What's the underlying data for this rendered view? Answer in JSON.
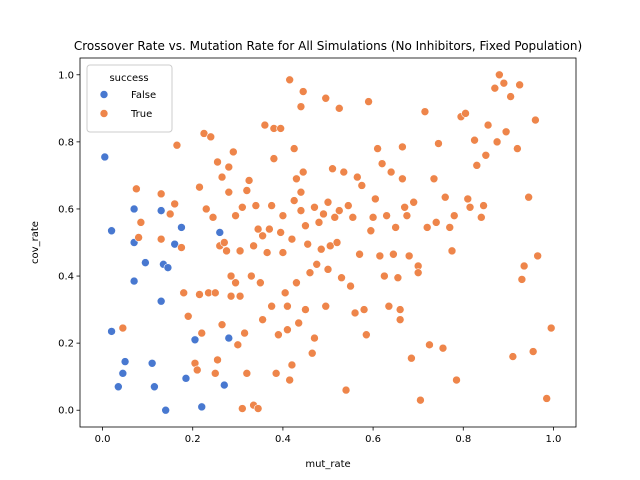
{
  "chart_data": {
    "type": "scatter",
    "title": "Crossover Rate vs. Mutation Rate for All Simulations (No Inhibitors, Fixed Population)",
    "xlabel": "mut_rate",
    "ylabel": "cov_rate",
    "xlim": [
      -0.05,
      1.05
    ],
    "ylim": [
      -0.05,
      1.05
    ],
    "xticks": [
      "0.0",
      "0.2",
      "0.4",
      "0.6",
      "0.8",
      "1.0"
    ],
    "yticks": [
      "0.0",
      "0.2",
      "0.4",
      "0.6",
      "0.8",
      "1.0"
    ],
    "grid": false,
    "legend": {
      "title": "success",
      "position": "top-left"
    },
    "series": [
      {
        "name": "False",
        "color": "#4878d0",
        "points": [
          [
            0.005,
            0.755
          ],
          [
            0.02,
            0.535
          ],
          [
            0.02,
            0.235
          ],
          [
            0.035,
            0.07
          ],
          [
            0.045,
            0.11
          ],
          [
            0.05,
            0.145
          ],
          [
            0.07,
            0.6
          ],
          [
            0.07,
            0.5
          ],
          [
            0.07,
            0.385
          ],
          [
            0.095,
            0.44
          ],
          [
            0.11,
            0.14
          ],
          [
            0.115,
            0.07
          ],
          [
            0.13,
            0.595
          ],
          [
            0.13,
            0.325
          ],
          [
            0.135,
            0.435
          ],
          [
            0.14,
            0.0
          ],
          [
            0.145,
            0.425
          ],
          [
            0.16,
            0.495
          ],
          [
            0.175,
            0.545
          ],
          [
            0.185,
            0.095
          ],
          [
            0.205,
            0.21
          ],
          [
            0.22,
            0.01
          ],
          [
            0.26,
            0.53
          ],
          [
            0.27,
            0.075
          ],
          [
            0.28,
            0.215
          ]
        ]
      },
      {
        "name": "True",
        "color": "#ee854a",
        "points": [
          [
            0.045,
            0.245
          ],
          [
            0.075,
            0.66
          ],
          [
            0.08,
            0.515
          ],
          [
            0.085,
            0.56
          ],
          [
            0.13,
            0.645
          ],
          [
            0.13,
            0.51
          ],
          [
            0.15,
            0.585
          ],
          [
            0.16,
            0.615
          ],
          [
            0.165,
            0.79
          ],
          [
            0.175,
            0.485
          ],
          [
            0.18,
            0.35
          ],
          [
            0.19,
            0.28
          ],
          [
            0.205,
            0.14
          ],
          [
            0.21,
            0.12
          ],
          [
            0.215,
            0.665
          ],
          [
            0.215,
            0.345
          ],
          [
            0.22,
            0.23
          ],
          [
            0.225,
            0.825
          ],
          [
            0.23,
            0.6
          ],
          [
            0.235,
            0.35
          ],
          [
            0.24,
            0.815
          ],
          [
            0.245,
            0.575
          ],
          [
            0.25,
            0.35
          ],
          [
            0.25,
            0.11
          ],
          [
            0.255,
            0.74
          ],
          [
            0.255,
            0.15
          ],
          [
            0.26,
            0.49
          ],
          [
            0.265,
            0.695
          ],
          [
            0.265,
            0.255
          ],
          [
            0.27,
            0.5
          ],
          [
            0.275,
            0.475
          ],
          [
            0.28,
            0.725
          ],
          [
            0.28,
            0.65
          ],
          [
            0.285,
            0.4
          ],
          [
            0.285,
            0.34
          ],
          [
            0.29,
            0.77
          ],
          [
            0.295,
            0.58
          ],
          [
            0.295,
            0.38
          ],
          [
            0.3,
            0.195
          ],
          [
            0.305,
            0.475
          ],
          [
            0.305,
            0.34
          ],
          [
            0.31,
            0.605
          ],
          [
            0.31,
            0.005
          ],
          [
            0.315,
            0.23
          ],
          [
            0.32,
            0.11
          ],
          [
            0.32,
            0.655
          ],
          [
            0.325,
            0.685
          ],
          [
            0.33,
            0.4
          ],
          [
            0.335,
            0.49
          ],
          [
            0.335,
            0.015
          ],
          [
            0.34,
            0.61
          ],
          [
            0.345,
            0.54
          ],
          [
            0.345,
            0.005
          ],
          [
            0.35,
            0.38
          ],
          [
            0.355,
            0.52
          ],
          [
            0.355,
            0.27
          ],
          [
            0.36,
            0.85
          ],
          [
            0.365,
            0.47
          ],
          [
            0.37,
            0.54
          ],
          [
            0.375,
            0.61
          ],
          [
            0.375,
            0.31
          ],
          [
            0.38,
            0.84
          ],
          [
            0.38,
            0.75
          ],
          [
            0.385,
            0.11
          ],
          [
            0.39,
            0.225
          ],
          [
            0.395,
            0.84
          ],
          [
            0.395,
            0.53
          ],
          [
            0.4,
            0.58
          ],
          [
            0.4,
            0.47
          ],
          [
            0.405,
            0.35
          ],
          [
            0.41,
            0.31
          ],
          [
            0.41,
            0.24
          ],
          [
            0.415,
            0.09
          ],
          [
            0.415,
            0.985
          ],
          [
            0.42,
            0.51
          ],
          [
            0.42,
            0.135
          ],
          [
            0.425,
            0.78
          ],
          [
            0.425,
            0.625
          ],
          [
            0.43,
            0.69
          ],
          [
            0.43,
            0.38
          ],
          [
            0.435,
            0.26
          ],
          [
            0.44,
            0.905
          ],
          [
            0.44,
            0.65
          ],
          [
            0.44,
            0.595
          ],
          [
            0.445,
            0.95
          ],
          [
            0.445,
            0.71
          ],
          [
            0.45,
            0.55
          ],
          [
            0.45,
            0.3
          ],
          [
            0.455,
            0.495
          ],
          [
            0.46,
            0.41
          ],
          [
            0.465,
            0.17
          ],
          [
            0.47,
            0.605
          ],
          [
            0.47,
            0.215
          ],
          [
            0.475,
            0.435
          ],
          [
            0.48,
            0.56
          ],
          [
            0.485,
            0.48
          ],
          [
            0.49,
            0.585
          ],
          [
            0.495,
            0.93
          ],
          [
            0.495,
            0.31
          ],
          [
            0.5,
            0.62
          ],
          [
            0.5,
            0.42
          ],
          [
            0.505,
            0.49
          ],
          [
            0.51,
            0.72
          ],
          [
            0.515,
            0.575
          ],
          [
            0.52,
            0.5
          ],
          [
            0.525,
            0.595
          ],
          [
            0.525,
            0.9
          ],
          [
            0.53,
            0.395
          ],
          [
            0.535,
            0.71
          ],
          [
            0.54,
            0.06
          ],
          [
            0.545,
            0.61
          ],
          [
            0.55,
            0.37
          ],
          [
            0.555,
            0.575
          ],
          [
            0.56,
            0.29
          ],
          [
            0.565,
            0.695
          ],
          [
            0.57,
            0.465
          ],
          [
            0.575,
            0.67
          ],
          [
            0.58,
            0.3
          ],
          [
            0.585,
            0.225
          ],
          [
            0.59,
            0.92
          ],
          [
            0.595,
            0.535
          ],
          [
            0.6,
            0.575
          ],
          [
            0.605,
            0.63
          ],
          [
            0.61,
            0.78
          ],
          [
            0.615,
            0.46
          ],
          [
            0.62,
            0.735
          ],
          [
            0.625,
            0.4
          ],
          [
            0.63,
            0.58
          ],
          [
            0.635,
            0.31
          ],
          [
            0.64,
            0.71
          ],
          [
            0.645,
            0.465
          ],
          [
            0.65,
            0.545
          ],
          [
            0.655,
            0.395
          ],
          [
            0.66,
            0.3
          ],
          [
            0.66,
            0.27
          ],
          [
            0.665,
            0.785
          ],
          [
            0.665,
            0.69
          ],
          [
            0.67,
            0.605
          ],
          [
            0.675,
            0.58
          ],
          [
            0.68,
            0.46
          ],
          [
            0.685,
            0.155
          ],
          [
            0.69,
            0.62
          ],
          [
            0.7,
            0.43
          ],
          [
            0.7,
            0.41
          ],
          [
            0.705,
            0.03
          ],
          [
            0.715,
            0.89
          ],
          [
            0.72,
            0.545
          ],
          [
            0.725,
            0.195
          ],
          [
            0.735,
            0.69
          ],
          [
            0.74,
            0.56
          ],
          [
            0.745,
            0.795
          ],
          [
            0.755,
            0.185
          ],
          [
            0.76,
            0.635
          ],
          [
            0.77,
            0.545
          ],
          [
            0.775,
            0.475
          ],
          [
            0.78,
            0.58
          ],
          [
            0.785,
            0.09
          ],
          [
            0.795,
            0.875
          ],
          [
            0.805,
            0.885
          ],
          [
            0.81,
            0.63
          ],
          [
            0.815,
            0.605
          ],
          [
            0.825,
            0.805
          ],
          [
            0.83,
            0.73
          ],
          [
            0.84,
            0.575
          ],
          [
            0.845,
            0.61
          ],
          [
            0.85,
            0.76
          ],
          [
            0.855,
            0.85
          ],
          [
            0.87,
            0.96
          ],
          [
            0.875,
            0.8
          ],
          [
            0.88,
            1.0
          ],
          [
            0.89,
            0.975
          ],
          [
            0.895,
            0.83
          ],
          [
            0.905,
            0.935
          ],
          [
            0.91,
            0.16
          ],
          [
            0.92,
            0.78
          ],
          [
            0.925,
            0.97
          ],
          [
            0.93,
            0.39
          ],
          [
            0.935,
            0.43
          ],
          [
            0.945,
            0.635
          ],
          [
            0.955,
            0.175
          ],
          [
            0.96,
            0.865
          ],
          [
            0.965,
            0.46
          ],
          [
            0.985,
            0.035
          ],
          [
            0.995,
            0.245
          ]
        ]
      }
    ]
  }
}
